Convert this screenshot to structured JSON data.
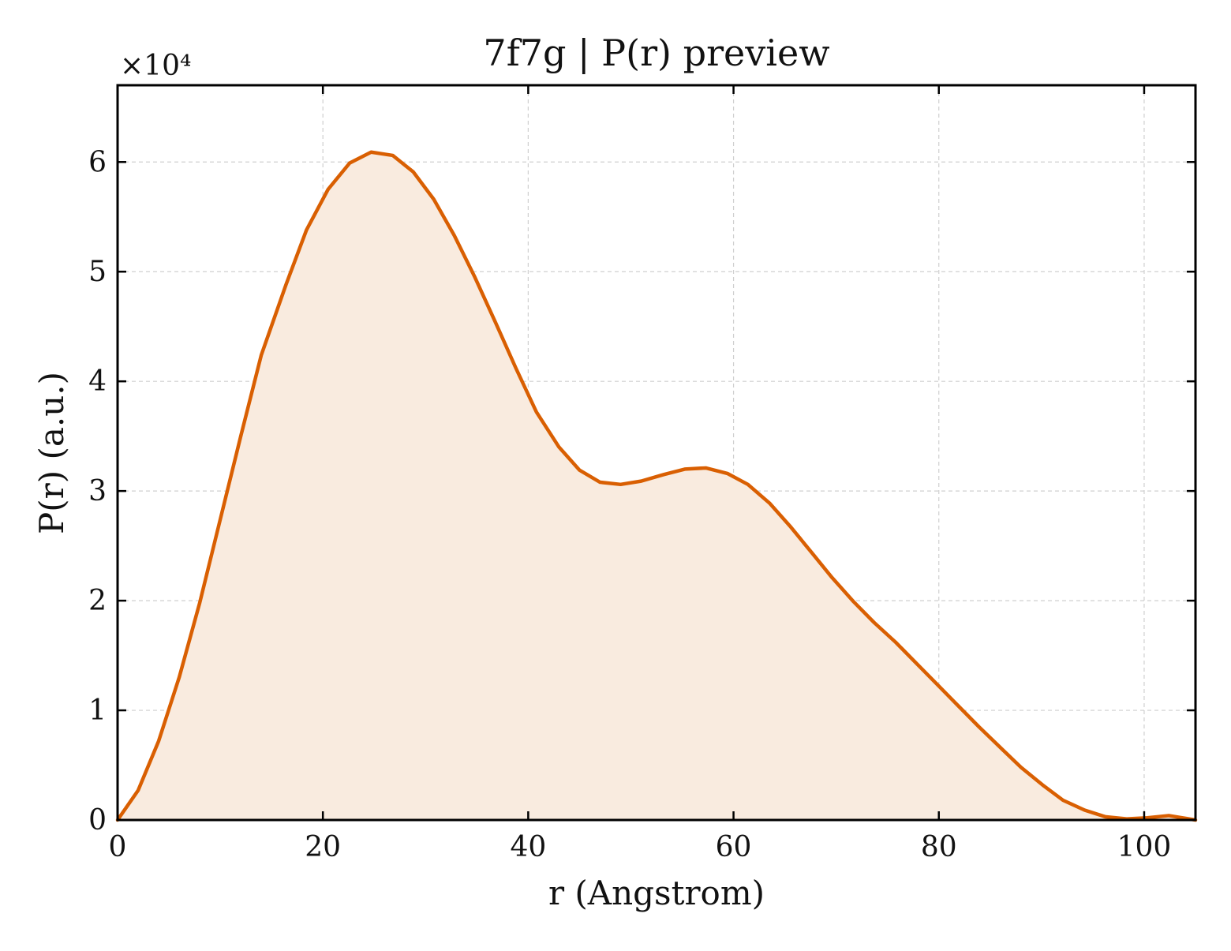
{
  "chart_data": {
    "type": "area",
    "title": "7f7g | P(r) preview",
    "xlabel": "r (Angstrom)",
    "ylabel": "P(r) (a.u.)",
    "y_offset_text": "×10⁴",
    "y_multiplier": 10000,
    "xlim": [
      0,
      105
    ],
    "ylim": [
      0,
      6.7
    ],
    "x_ticks": [
      0,
      20,
      40,
      60,
      80,
      100
    ],
    "x_tick_labels": [
      "0",
      "20",
      "40",
      "60",
      "80",
      "100"
    ],
    "y_ticks": [
      0,
      1,
      2,
      3,
      4,
      5,
      6
    ],
    "y_tick_labels": [
      "0",
      "1",
      "2",
      "3",
      "4",
      "5",
      "6"
    ],
    "grid": true,
    "line_color": "#d95f02",
    "fill_color": "#f9ebdf",
    "series": [
      {
        "x": [
          0,
          2,
          4,
          6,
          8,
          10,
          12,
          14,
          16.4,
          18.4,
          20.5,
          22.6,
          24.7,
          26.8,
          28.8,
          30.8,
          32.8,
          34.8,
          36.8,
          38.8,
          40.8,
          43,
          45,
          47,
          49,
          51,
          53.2,
          55.3,
          57.3,
          59.4,
          61.4,
          63.5,
          65.5,
          67.6,
          69.6,
          71.7,
          73.7,
          75.8,
          77.8,
          79.8,
          81.9,
          83.9,
          86,
          88,
          90.1,
          92.1,
          94.2,
          96.2,
          98.3,
          100.3,
          102.4,
          105
        ],
        "y": [
          0,
          0.27,
          0.72,
          1.3,
          1.98,
          2.74,
          3.5,
          4.24,
          4.88,
          5.38,
          5.75,
          5.99,
          6.09,
          6.06,
          5.91,
          5.66,
          5.33,
          4.95,
          4.54,
          4.12,
          3.72,
          3.4,
          3.19,
          3.08,
          3.06,
          3.09,
          3.15,
          3.2,
          3.21,
          3.16,
          3.06,
          2.89,
          2.68,
          2.44,
          2.21,
          1.99,
          1.8,
          1.62,
          1.43,
          1.24,
          1.04,
          0.85,
          0.66,
          0.48,
          0.32,
          0.18,
          0.09,
          0.03,
          0.01,
          0.02,
          0.04,
          0
        ]
      }
    ]
  }
}
